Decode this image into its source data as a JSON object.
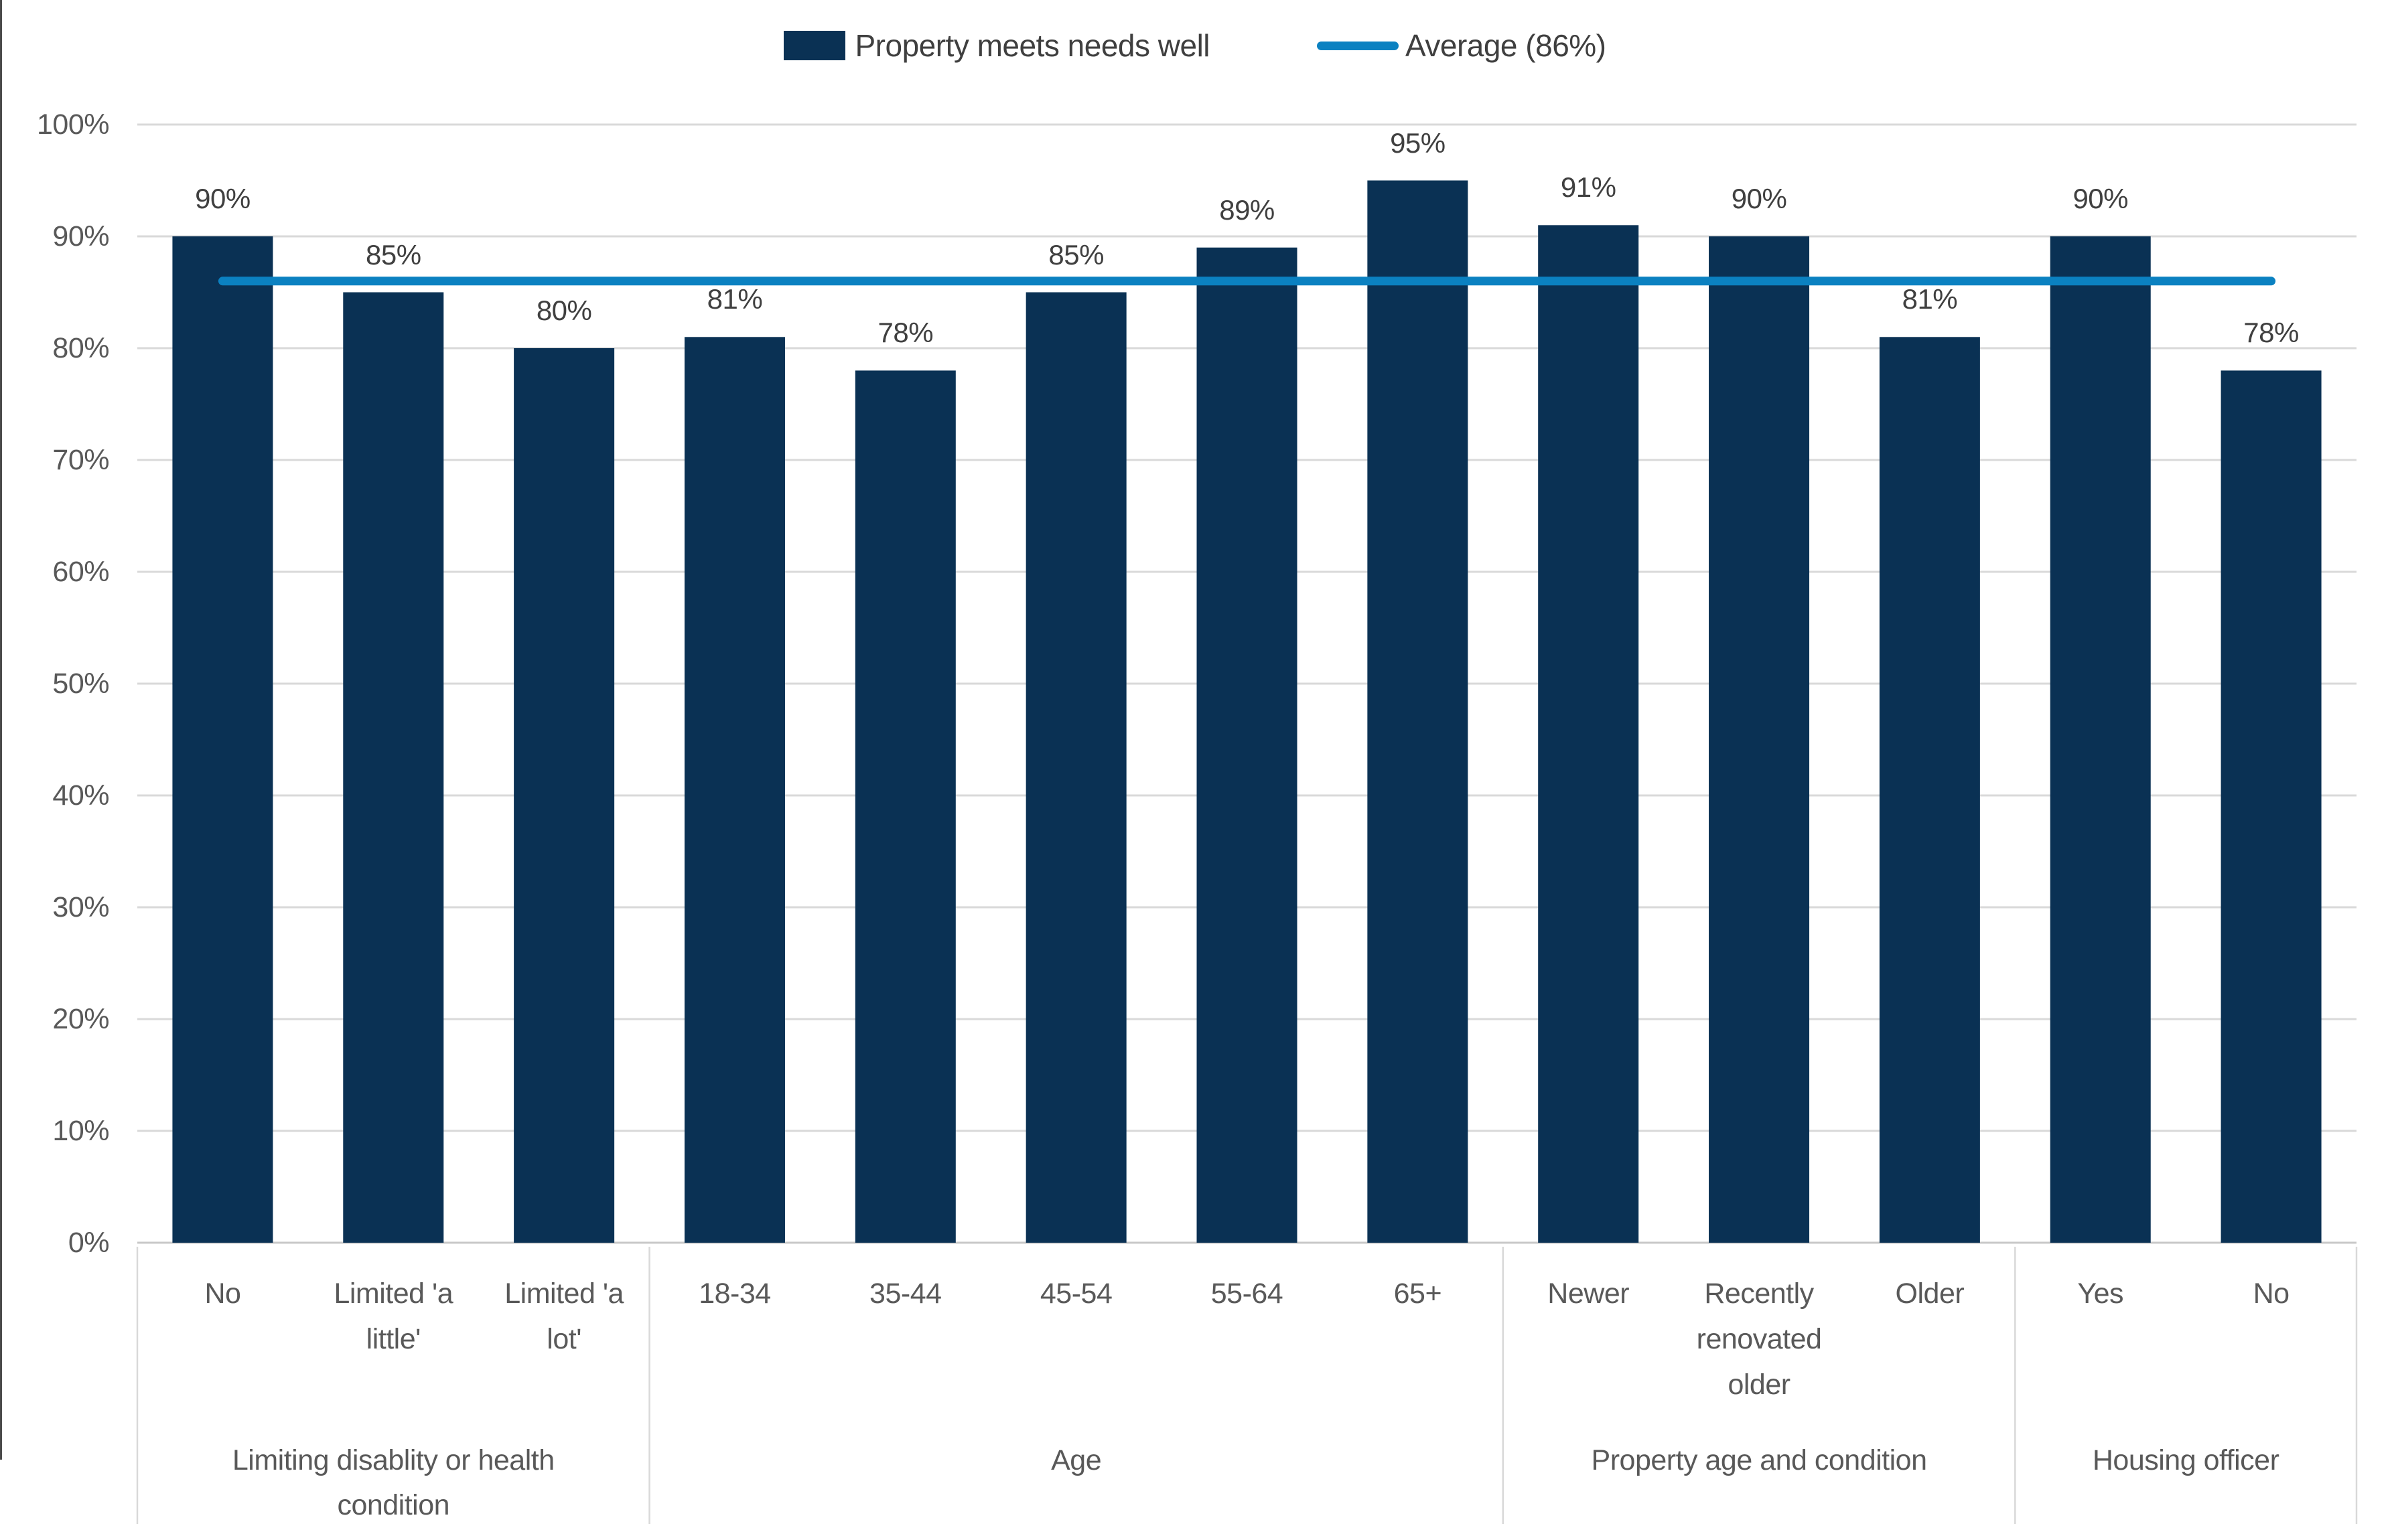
{
  "legend": {
    "series_label": "Property meets needs well",
    "average_label": "Average (86%)"
  },
  "chart_data": {
    "type": "bar",
    "title": "",
    "xlabel": "",
    "ylabel": "",
    "categories": [
      "No",
      "Limited 'a\nlittle'",
      "Limited 'a\nlot'",
      "18-34",
      "35-44",
      "45-54",
      "55-64",
      "65+",
      "Newer",
      "Recently\nrenovated\nolder",
      "Older",
      "Yes",
      "No"
    ],
    "series": [
      {
        "name": "Property meets needs well",
        "values": [
          90,
          85,
          80,
          81,
          78,
          85,
          89,
          95,
          91,
          90,
          81,
          90,
          78
        ]
      }
    ],
    "data_labels": [
      "90%",
      "85%",
      "80%",
      "81%",
      "78%",
      "85%",
      "89%",
      "95%",
      "91%",
      "90%",
      "81%",
      "90%",
      "78%"
    ],
    "groups": [
      {
        "label": "Limiting disablity or health\ncondition",
        "span": 3
      },
      {
        "label": "Age",
        "span": 5
      },
      {
        "label": "Property age and condition",
        "span": 3
      },
      {
        "label": "Housing officer",
        "span": 2
      }
    ],
    "average_line": {
      "label": "Average (86%)",
      "value": 86
    },
    "y_axis": {
      "min": 0,
      "max": 100,
      "step": 10,
      "tick_labels": [
        "0%",
        "10%",
        "20%",
        "30%",
        "40%",
        "50%",
        "60%",
        "70%",
        "80%",
        "90%",
        "100%"
      ]
    },
    "grid": true,
    "legend_position": "top",
    "colors": {
      "bar": "#0a3154",
      "average_line": "#0b81c1",
      "gridline": "#d9d9d9",
      "axis_line": "#c8c8c8",
      "divider": "#d9d9d9",
      "axis_text": "#595959",
      "data_label_text": "#404040"
    }
  }
}
